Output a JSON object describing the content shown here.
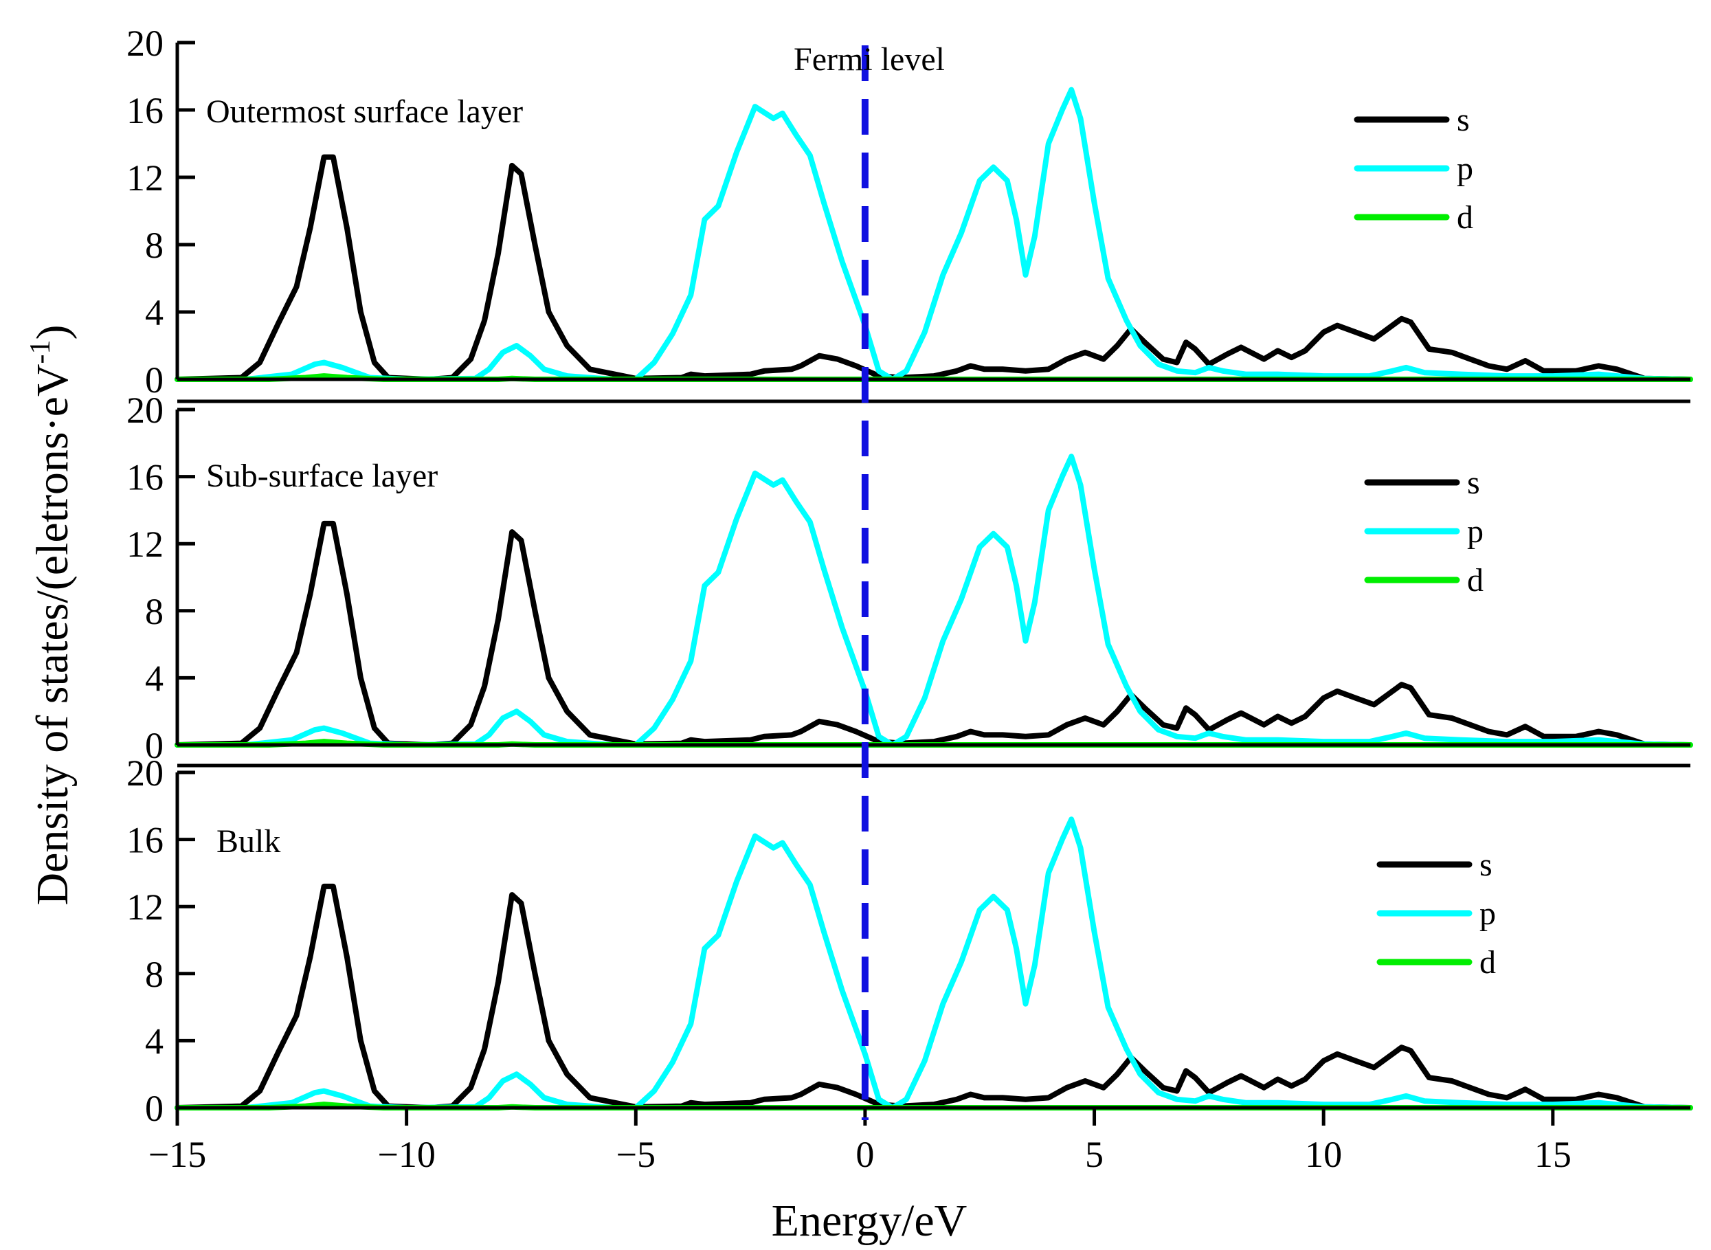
{
  "chart_data": {
    "type": "line",
    "xlabel": "Energy/eV",
    "ylabel": "Density of states/(eletrons·eV",
    "ylabel_superscript": "-1",
    "ylabel_close": ")",
    "xlim": [
      -15,
      18
    ],
    "ylim": [
      0,
      20
    ],
    "x_ticks": [
      -15,
      -10,
      -5,
      0,
      5,
      10,
      15
    ],
    "x_tick_labels": [
      "−15",
      "−10",
      "−5",
      "0",
      "5",
      "10",
      "15"
    ],
    "y_ticks": [
      0,
      4,
      8,
      12,
      16,
      20
    ],
    "y_tick_labels": [
      "0",
      "4",
      "8",
      "12",
      "16",
      "20"
    ],
    "fermi_level": {
      "x": 0,
      "label": "Fermi level",
      "color": "#1010e0"
    },
    "colors": {
      "s": "#000000",
      "p": "#00ffff",
      "d": "#00ee00"
    },
    "legend_entries": [
      "s",
      "p",
      "d"
    ],
    "legend_position": "top-right",
    "panels": [
      {
        "label": "Outermost surface layer"
      },
      {
        "label": "Sub-surface layer"
      },
      {
        "label": "Bulk"
      }
    ],
    "series": [
      {
        "name": "s",
        "points": [
          [
            -15,
            0
          ],
          [
            -13.6,
            0.1
          ],
          [
            -13.2,
            1
          ],
          [
            -12.8,
            3.3
          ],
          [
            -12.4,
            5.5
          ],
          [
            -12.1,
            9
          ],
          [
            -11.8,
            13.2
          ],
          [
            -11.6,
            13.2
          ],
          [
            -11.3,
            9
          ],
          [
            -11.0,
            4
          ],
          [
            -10.7,
            1
          ],
          [
            -10.4,
            0.1
          ],
          [
            -9.5,
            0
          ],
          [
            -9.0,
            0.1
          ],
          [
            -8.6,
            1.2
          ],
          [
            -8.3,
            3.5
          ],
          [
            -8.0,
            7.5
          ],
          [
            -7.7,
            12.7
          ],
          [
            -7.5,
            12.2
          ],
          [
            -7.2,
            8
          ],
          [
            -6.9,
            4
          ],
          [
            -6.5,
            2
          ],
          [
            -6.0,
            0.6
          ],
          [
            -5.0,
            0.05
          ],
          [
            -4.0,
            0.1
          ],
          [
            -3.8,
            0.3
          ],
          [
            -3.5,
            0.2
          ],
          [
            -2.5,
            0.3
          ],
          [
            -2.2,
            0.5
          ],
          [
            -1.6,
            0.6
          ],
          [
            -1.4,
            0.8
          ],
          [
            -1.0,
            1.4
          ],
          [
            -0.6,
            1.2
          ],
          [
            -0.2,
            0.8
          ],
          [
            0.3,
            0.2
          ],
          [
            0.8,
            0.1
          ],
          [
            1.5,
            0.2
          ],
          [
            2.0,
            0.5
          ],
          [
            2.3,
            0.8
          ],
          [
            2.6,
            0.6
          ],
          [
            3.0,
            0.6
          ],
          [
            3.5,
            0.5
          ],
          [
            4.0,
            0.6
          ],
          [
            4.4,
            1.2
          ],
          [
            4.8,
            1.6
          ],
          [
            5.2,
            1.2
          ],
          [
            5.5,
            2
          ],
          [
            5.8,
            3
          ],
          [
            6.1,
            2.2
          ],
          [
            6.5,
            1.2
          ],
          [
            6.8,
            1.0
          ],
          [
            7.0,
            2.2
          ],
          [
            7.2,
            1.8
          ],
          [
            7.5,
            0.9
          ],
          [
            7.9,
            1.5
          ],
          [
            8.2,
            1.9
          ],
          [
            8.7,
            1.2
          ],
          [
            9.0,
            1.7
          ],
          [
            9.3,
            1.3
          ],
          [
            9.6,
            1.7
          ],
          [
            10.0,
            2.8
          ],
          [
            10.3,
            3.2
          ],
          [
            10.7,
            2.8
          ],
          [
            11.1,
            2.4
          ],
          [
            11.4,
            3.0
          ],
          [
            11.7,
            3.6
          ],
          [
            11.9,
            3.4
          ],
          [
            12.3,
            1.8
          ],
          [
            12.8,
            1.6
          ],
          [
            13.2,
            1.2
          ],
          [
            13.6,
            0.8
          ],
          [
            14.0,
            0.6
          ],
          [
            14.4,
            1.1
          ],
          [
            14.8,
            0.5
          ],
          [
            15.5,
            0.5
          ],
          [
            16.0,
            0.8
          ],
          [
            16.4,
            0.6
          ],
          [
            17.0,
            0.05
          ],
          [
            18,
            0
          ]
        ]
      },
      {
        "name": "p",
        "points": [
          [
            -15,
            0
          ],
          [
            -13.5,
            0
          ],
          [
            -12.5,
            0.3
          ],
          [
            -12.0,
            0.9
          ],
          [
            -11.8,
            1.0
          ],
          [
            -11.4,
            0.7
          ],
          [
            -10.8,
            0.1
          ],
          [
            -10.0,
            0
          ],
          [
            -8.5,
            0.05
          ],
          [
            -8.2,
            0.6
          ],
          [
            -7.9,
            1.6
          ],
          [
            -7.6,
            2.0
          ],
          [
            -7.3,
            1.4
          ],
          [
            -7.0,
            0.6
          ],
          [
            -6.5,
            0.2
          ],
          [
            -5.5,
            0
          ],
          [
            -5.0,
            0
          ],
          [
            -4.6,
            1.0
          ],
          [
            -4.2,
            2.7
          ],
          [
            -3.8,
            5.0
          ],
          [
            -3.5,
            9.5
          ],
          [
            -3.2,
            10.3
          ],
          [
            -2.8,
            13.5
          ],
          [
            -2.4,
            16.2
          ],
          [
            -2.0,
            15.5
          ],
          [
            -1.8,
            15.8
          ],
          [
            -1.5,
            14.5
          ],
          [
            -1.2,
            13.3
          ],
          [
            -0.9,
            10.5
          ],
          [
            -0.5,
            7.0
          ],
          [
            0.0,
            3.2
          ],
          [
            0.3,
            0.5
          ],
          [
            0.6,
            0
          ],
          [
            0.9,
            0.5
          ],
          [
            1.3,
            2.8
          ],
          [
            1.7,
            6.2
          ],
          [
            2.1,
            8.7
          ],
          [
            2.5,
            11.8
          ],
          [
            2.8,
            12.6
          ],
          [
            3.1,
            11.8
          ],
          [
            3.3,
            9.5
          ],
          [
            3.5,
            6.2
          ],
          [
            3.7,
            8.5
          ],
          [
            4.0,
            14.0
          ],
          [
            4.3,
            16.0
          ],
          [
            4.5,
            17.2
          ],
          [
            4.7,
            15.5
          ],
          [
            5.0,
            10.5
          ],
          [
            5.3,
            6.0
          ],
          [
            5.7,
            3.5
          ],
          [
            6.0,
            2.0
          ],
          [
            6.4,
            0.9
          ],
          [
            6.8,
            0.5
          ],
          [
            7.2,
            0.4
          ],
          [
            7.5,
            0.7
          ],
          [
            7.8,
            0.5
          ],
          [
            8.3,
            0.3
          ],
          [
            9.0,
            0.3
          ],
          [
            10.0,
            0.2
          ],
          [
            11.0,
            0.2
          ],
          [
            11.5,
            0.5
          ],
          [
            11.8,
            0.7
          ],
          [
            12.2,
            0.4
          ],
          [
            13.0,
            0.3
          ],
          [
            14.0,
            0.2
          ],
          [
            15.0,
            0.2
          ],
          [
            16.0,
            0.3
          ],
          [
            17.0,
            0.05
          ],
          [
            18,
            0
          ]
        ]
      },
      {
        "name": "d",
        "points": [
          [
            -15,
            0
          ],
          [
            -13,
            0
          ],
          [
            -12.2,
            0.1
          ],
          [
            -11.8,
            0.2
          ],
          [
            -11.3,
            0.1
          ],
          [
            -10.5,
            0
          ],
          [
            -8,
            0
          ],
          [
            -7.7,
            0.05
          ],
          [
            -7.2,
            0
          ],
          [
            0,
            0
          ],
          [
            5,
            0
          ],
          [
            10,
            0
          ],
          [
            15,
            0
          ],
          [
            18,
            0
          ]
        ]
      }
    ]
  }
}
